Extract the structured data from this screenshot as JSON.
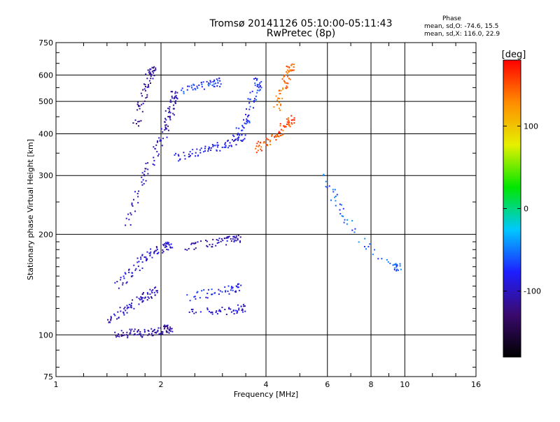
{
  "header": {
    "title": "Tromsø 20141126 05:10:00-05:11:43",
    "subtitle": "RwPretec (8p)"
  },
  "stats": {
    "heading": "Phase",
    "o_line": "mean, sd,O: -74.6, 15.5",
    "x_line": "mean, sd,X: 116.0, 22.9"
  },
  "colorbar": {
    "label": "[deg]",
    "ticks": [
      "100",
      "0",
      "-100"
    ],
    "tick_values": [
      100,
      0,
      -100
    ],
    "range": [
      -180,
      180
    ],
    "colormap": [
      "#000000",
      "#3a0a6e",
      "#1e1eff",
      "#00c8ff",
      "#00e600",
      "#e6f000",
      "#ff8c00",
      "#ff0000"
    ]
  },
  "chart_data": {
    "type": "scatter",
    "title": "Tromsø 20141126 05:10:00-05:11:43",
    "subtitle": "RwPretec (8p)",
    "xlabel": "Frequency [MHz]",
    "ylabel": "Stationary phase Virtual Height [km]",
    "x_scale": "log",
    "y_scale": "log",
    "xlim": [
      1,
      16
    ],
    "ylim": [
      75,
      750
    ],
    "xticks": [
      1,
      2,
      4,
      6,
      8,
      10,
      16
    ],
    "xtick_labels": [
      "1",
      "2",
      "4",
      "6",
      "8",
      "10",
      "16"
    ],
    "yticks": [
      75,
      100,
      200,
      300,
      400,
      500,
      600,
      750
    ],
    "ytick_labels": [
      "75",
      "100",
      "200",
      "300",
      "400",
      "500",
      "600",
      "750"
    ],
    "grid": true,
    "color_variable": "Phase [deg]",
    "traces": [
      {
        "x": [
          1.48,
          1.55,
          1.65,
          1.75,
          1.85,
          1.95,
          2.05,
          2.1
        ],
        "y": [
          101,
          101,
          101,
          101,
          102,
          102,
          103,
          104
        ],
        "phase": -110
      },
      {
        "x": [
          1.6,
          1.7,
          1.8,
          1.9,
          2.0,
          2.05,
          2.1,
          2.15,
          2.2
        ],
        "y": [
          210,
          250,
          300,
          340,
          380,
          420,
          450,
          480,
          520
        ],
        "phase": -105
      },
      {
        "x": [
          1.7,
          1.75,
          1.8,
          1.85,
          1.9
        ],
        "y": [
          420,
          480,
          540,
          590,
          620
        ],
        "phase": -115
      },
      {
        "x": [
          1.5,
          1.6,
          1.7,
          1.8,
          1.9,
          2.0,
          2.1
        ],
        "y": [
          140,
          150,
          160,
          170,
          175,
          180,
          185
        ],
        "phase": -95
      },
      {
        "x": [
          1.4,
          1.5,
          1.6,
          1.7,
          1.8,
          1.9
        ],
        "y": [
          110,
          115,
          120,
          125,
          130,
          135
        ],
        "phase": -100
      },
      {
        "x": [
          2.2,
          2.4,
          2.6,
          2.8,
          3.0,
          3.2,
          3.4
        ],
        "y": [
          340,
          345,
          355,
          360,
          370,
          380,
          390
        ],
        "phase": -85
      },
      {
        "x": [
          3.3,
          3.5,
          3.6,
          3.7,
          3.8
        ],
        "y": [
          400,
          430,
          470,
          520,
          570
        ],
        "phase": -75
      },
      {
        "x": [
          3.7,
          3.9,
          4.1,
          4.3,
          4.5,
          4.7
        ],
        "y": [
          360,
          370,
          380,
          400,
          420,
          440
        ],
        "phase": 150
      },
      {
        "x": [
          4.3,
          4.4,
          4.5,
          4.6,
          4.7
        ],
        "y": [
          480,
          520,
          560,
          600,
          630
        ],
        "phase": 140
      },
      {
        "x": [
          2.4,
          2.7,
          3.0,
          3.3
        ],
        "y": [
          130,
          133,
          136,
          138
        ],
        "phase": -80
      },
      {
        "x": [
          2.4,
          2.8,
          3.1,
          3.4
        ],
        "y": [
          116,
          118,
          118,
          120
        ],
        "phase": -95
      },
      {
        "x": [
          2.4,
          2.6,
          2.9,
          3.1,
          3.3
        ],
        "y": [
          183,
          186,
          190,
          192,
          195
        ],
        "phase": -105
      },
      {
        "x": [
          2.3,
          2.5,
          2.7,
          2.9
        ],
        "y": [
          540,
          555,
          560,
          570
        ],
        "phase": -70
      },
      {
        "x": [
          5.8,
          6.3,
          6.8,
          8.1,
          9.5
        ],
        "y": [
          300,
          260,
          220,
          180,
          160
        ],
        "phase": -60
      }
    ]
  }
}
